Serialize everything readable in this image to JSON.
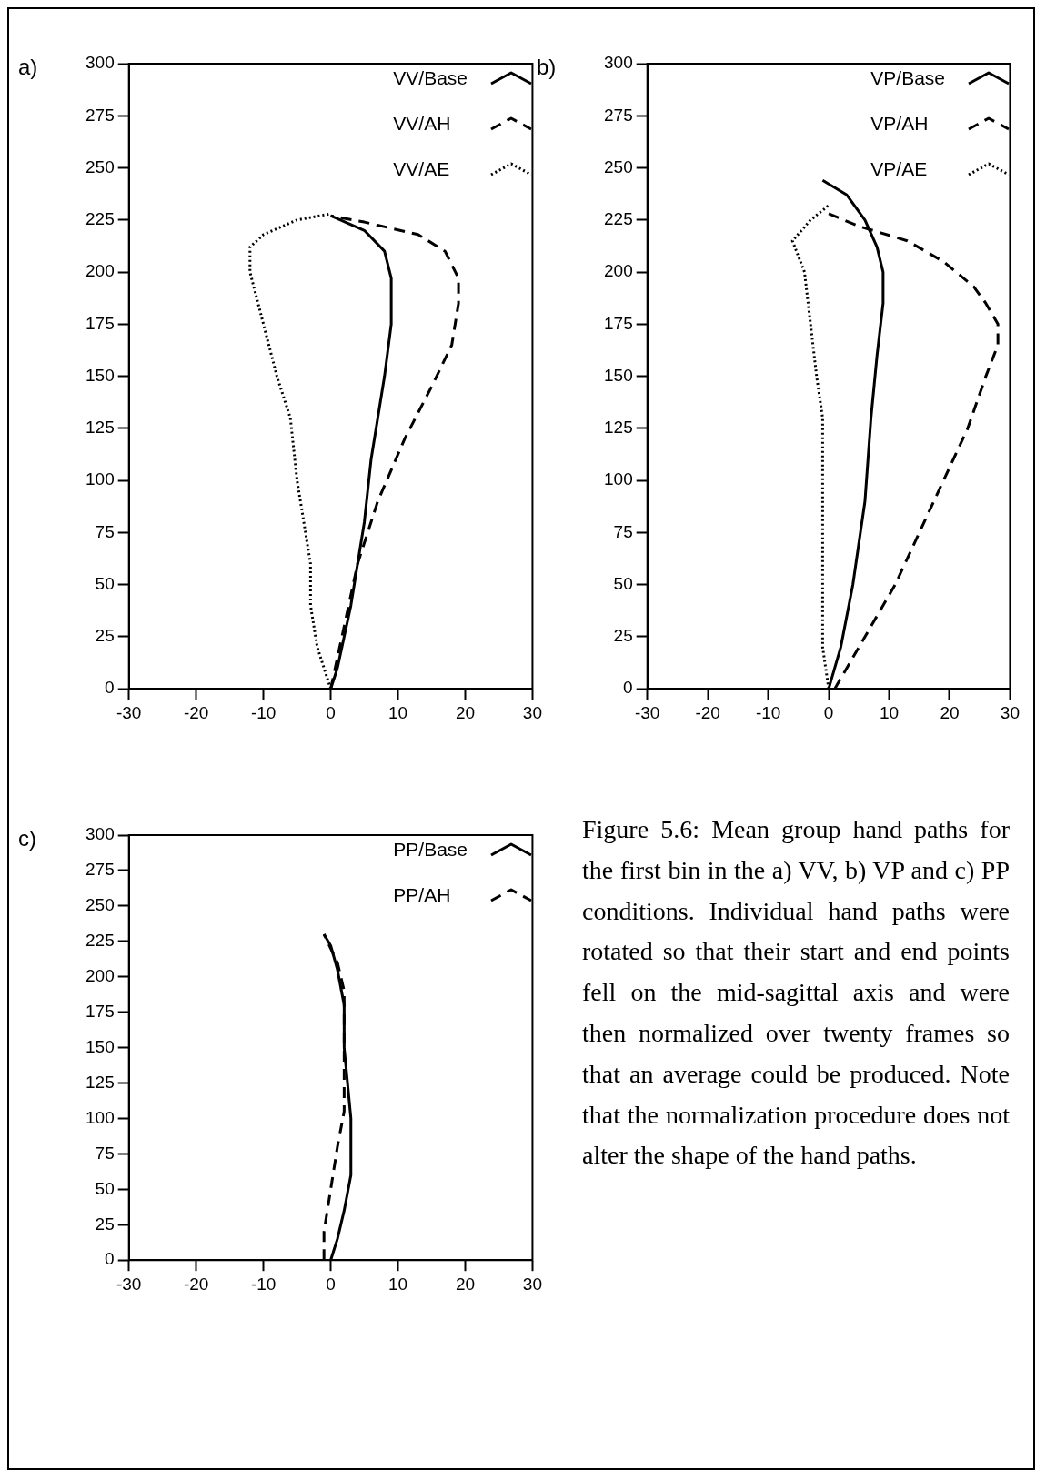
{
  "chart_data": [
    {
      "type": "line",
      "title": "a)",
      "xlim": [
        -30,
        30
      ],
      "xticks": [
        -30,
        -20,
        -10,
        0,
        10,
        20,
        30
      ],
      "ylim": [
        0,
        300
      ],
      "yticks": [
        0,
        25,
        50,
        75,
        100,
        125,
        150,
        175,
        200,
        225,
        250,
        275,
        300
      ],
      "legend": "top right",
      "marker": "none",
      "grid": false,
      "series": [
        {
          "name": "VV/Base",
          "color": "#000000",
          "line_style": "solid",
          "x": [
            0,
            1,
            3,
            5,
            6,
            8,
            9,
            9,
            8,
            5,
            0
          ],
          "values": [
            0,
            10,
            40,
            80,
            110,
            150,
            175,
            197,
            210,
            220,
            227
          ]
        },
        {
          "name": "VV/AH",
          "color": "#000000",
          "line_style": "dashed",
          "x": [
            0,
            2,
            4,
            7,
            11,
            15,
            18,
            19,
            19,
            17,
            13,
            5,
            0
          ],
          "values": [
            0,
            30,
            60,
            90,
            120,
            145,
            165,
            185,
            197,
            210,
            218,
            224,
            227
          ]
        },
        {
          "name": "VV/AE",
          "color": "#000000",
          "line_style": "dotted",
          "x": [
            0,
            -2,
            -3,
            -3,
            -4,
            -5,
            -6,
            -8,
            -10,
            -12,
            -12,
            -10,
            -5,
            0
          ],
          "values": [
            0,
            20,
            40,
            60,
            80,
            100,
            130,
            150,
            175,
            200,
            212,
            218,
            225,
            228
          ]
        }
      ]
    },
    {
      "type": "line",
      "title": "b)",
      "xlim": [
        -30,
        30
      ],
      "xticks": [
        -30,
        -20,
        -10,
        0,
        10,
        20,
        30
      ],
      "ylim": [
        0,
        300
      ],
      "yticks": [
        0,
        25,
        50,
        75,
        100,
        125,
        150,
        175,
        200,
        225,
        250,
        275,
        300
      ],
      "legend": "top right",
      "marker": "none",
      "grid": false,
      "series": [
        {
          "name": "VP/Base",
          "color": "#000000",
          "line_style": "solid",
          "x": [
            0,
            2,
            4,
            6,
            7,
            8,
            9,
            9,
            8,
            6,
            3,
            -1
          ],
          "values": [
            0,
            20,
            50,
            90,
            130,
            160,
            185,
            200,
            212,
            225,
            237,
            244
          ]
        },
        {
          "name": "VP/AH",
          "color": "#000000",
          "line_style": "dashed",
          "x": [
            1,
            6,
            11,
            15,
            19,
            23,
            26,
            28,
            28,
            26,
            24,
            19,
            13,
            5,
            0
          ],
          "values": [
            0,
            25,
            50,
            75,
            100,
            125,
            150,
            165,
            175,
            185,
            193,
            205,
            215,
            222,
            228
          ]
        },
        {
          "name": "VP/AE",
          "color": "#000000",
          "line_style": "dotted",
          "x": [
            0,
            -1,
            -1,
            -1,
            -1,
            -2,
            -3,
            -4,
            -6,
            -3,
            0
          ],
          "values": [
            0,
            20,
            50,
            90,
            130,
            150,
            175,
            200,
            215,
            225,
            232
          ]
        }
      ]
    },
    {
      "type": "line",
      "title": "c)",
      "xlim": [
        -30,
        30
      ],
      "xticks": [
        -30,
        -20,
        -10,
        0,
        10,
        20,
        30
      ],
      "ylim": [
        0,
        300
      ],
      "yticks": [
        0,
        25,
        50,
        75,
        100,
        125,
        150,
        175,
        200,
        225,
        250,
        275,
        300
      ],
      "legend": "top right",
      "marker": "none",
      "grid": false,
      "series": [
        {
          "name": "PP/Base",
          "color": "#000000",
          "line_style": "solid",
          "x": [
            0,
            1,
            2,
            3,
            3,
            2,
            2,
            1,
            0,
            -1
          ],
          "values": [
            0,
            15,
            35,
            60,
            100,
            150,
            180,
            205,
            222,
            230
          ]
        },
        {
          "name": "PP/AH",
          "color": "#000000",
          "line_style": "dashed",
          "x": [
            -1,
            -1,
            0,
            1,
            2,
            2,
            2,
            1,
            -1
          ],
          "values": [
            0,
            20,
            50,
            80,
            105,
            150,
            190,
            210,
            230
          ]
        }
      ]
    },
    {
      "type": "other",
      "annotations": [
        "Figure 5.6: Mean group hand paths for the first bin in the a) VV, b) VP and c) PP conditions. Individual hand paths were rotated so that their start and end points fell on the mid-sagittal axis and were then normalized over twenty frames so that an average could be produced. Note that the normalization procedure does not alter the shape of the hand paths."
      ]
    }
  ]
}
